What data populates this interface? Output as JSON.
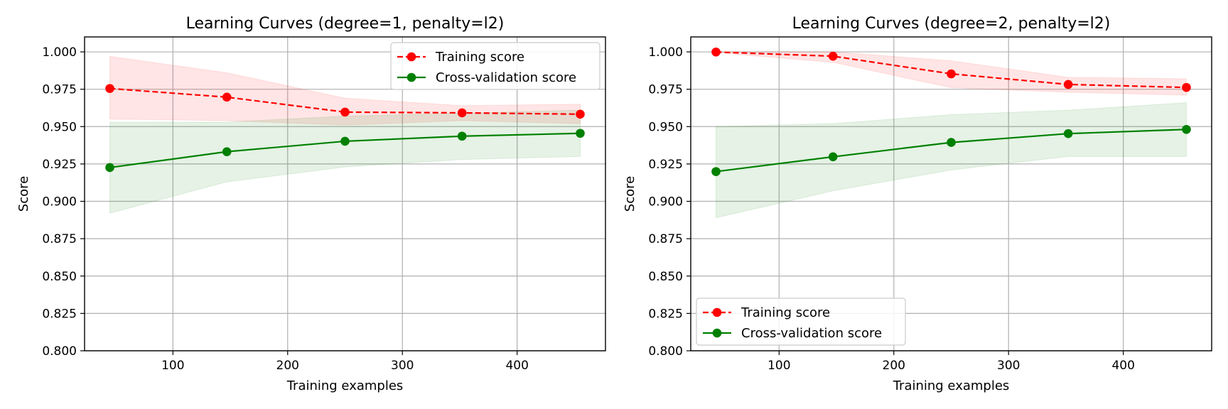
{
  "chart_data": [
    {
      "type": "line",
      "title": "Learning Curves (degree=1, penalty=l2)",
      "xlabel": "Training examples",
      "ylabel": "Score",
      "xlim": [
        23,
        477
      ],
      "ylim": [
        0.8,
        1.01
      ],
      "xticks": [
        100,
        200,
        300,
        400
      ],
      "yticks": [
        0.8,
        0.825,
        0.85,
        0.875,
        0.9,
        0.925,
        0.95,
        0.975,
        1.0
      ],
      "grid": true,
      "legend_position": "upper-right",
      "x": [
        45,
        147,
        250,
        352,
        455
      ],
      "series": [
        {
          "name": "Training score",
          "color": "#ff0000",
          "linestyle": "dashed",
          "marker": "circle",
          "values": [
            0.9755,
            0.9697,
            0.9597,
            0.9592,
            0.9583
          ],
          "band_lower": [
            0.955,
            0.954,
            0.951,
            0.954,
            0.952
          ],
          "band_upper": [
            0.997,
            0.986,
            0.969,
            0.964,
            0.965
          ]
        },
        {
          "name": "Cross-validation score",
          "color": "#008000",
          "linestyle": "solid",
          "marker": "circle",
          "values": [
            0.9226,
            0.9332,
            0.9402,
            0.9436,
            0.9455
          ],
          "band_lower": [
            0.892,
            0.913,
            0.923,
            0.928,
            0.93
          ],
          "band_upper": [
            0.953,
            0.953,
            0.957,
            0.959,
            0.961
          ]
        }
      ]
    },
    {
      "type": "line",
      "title": "Learning Curves (degree=2, penalty=l2)",
      "xlabel": "Training examples",
      "ylabel": "Score",
      "xlim": [
        23,
        477
      ],
      "ylim": [
        0.8,
        1.01
      ],
      "xticks": [
        100,
        200,
        300,
        400
      ],
      "yticks": [
        0.8,
        0.825,
        0.85,
        0.875,
        0.9,
        0.925,
        0.95,
        0.975,
        1.0
      ],
      "grid": true,
      "legend_position": "lower-left",
      "x": [
        45,
        147,
        250,
        352,
        455
      ],
      "series": [
        {
          "name": "Training score",
          "color": "#ff0000",
          "linestyle": "dashed",
          "marker": "circle",
          "values": [
            0.9999,
            0.9971,
            0.9853,
            0.9782,
            0.9762
          ],
          "band_lower": [
            0.9995,
            0.993,
            0.976,
            0.973,
            0.971
          ],
          "band_upper": [
            1.0,
            1.0,
            0.994,
            0.983,
            0.982
          ]
        },
        {
          "name": "Cross-validation score",
          "color": "#008000",
          "linestyle": "solid",
          "marker": "circle",
          "values": [
            0.9199,
            0.9298,
            0.9394,
            0.9453,
            0.9481
          ],
          "band_lower": [
            0.889,
            0.907,
            0.921,
            0.93,
            0.93
          ],
          "band_upper": [
            0.95,
            0.952,
            0.958,
            0.961,
            0.966
          ]
        }
      ]
    }
  ]
}
